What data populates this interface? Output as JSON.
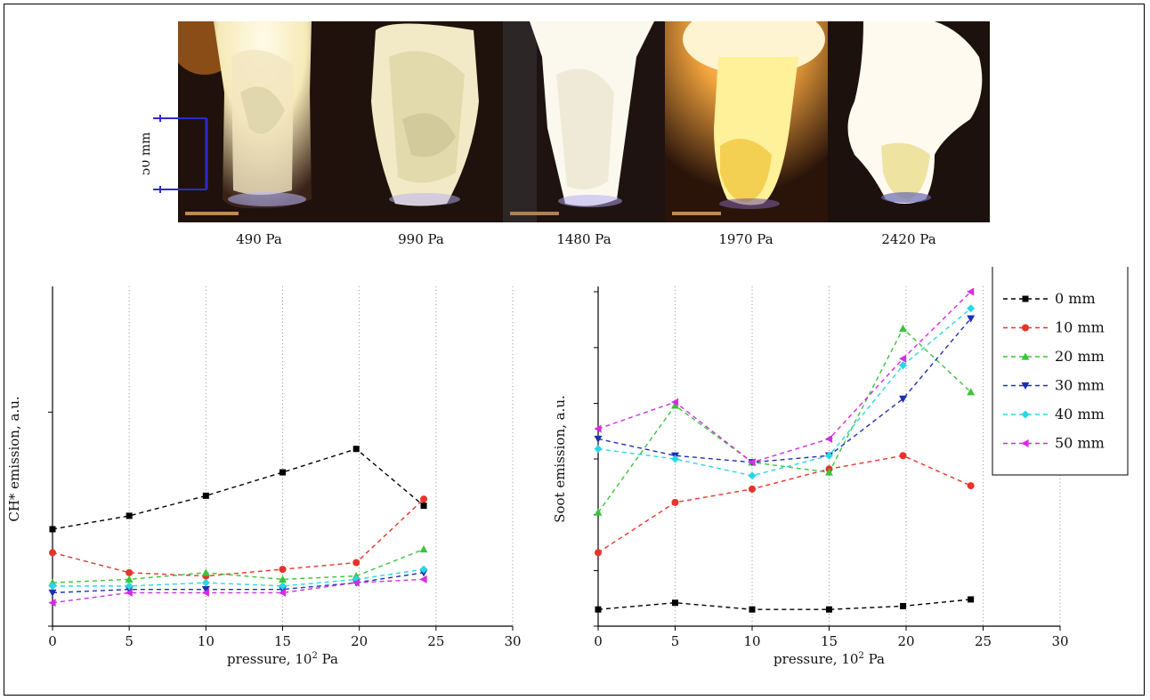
{
  "photo_strip": {
    "scale_label": "50 mm",
    "labels": [
      "490 Pa",
      "990 Pa",
      "1480 Pa",
      "1970 Pa",
      "2420 Pa"
    ]
  },
  "colors": {
    "series": [
      "#000000",
      "#e8332a",
      "#3bc43b",
      "#1f2fb0",
      "#2ad6e6",
      "#d22ee0"
    ],
    "scale_bar": "#2b2bd0"
  },
  "chart_data": [
    {
      "type": "line",
      "title": "",
      "xlabel": "pressure, 10",
      "xlabel_sup": "2",
      "xlabel_tail": " Pa",
      "ylabel": "CH* emission, a.u.",
      "xlim": [
        0,
        30
      ],
      "xticks": [
        "0",
        "5",
        "10",
        "15",
        "20",
        "25",
        "30"
      ],
      "ylim": [
        0,
        1
      ],
      "grid": "vertical",
      "series": [
        {
          "name": "0 mm",
          "marker": "square",
          "x": [
            0,
            5,
            10,
            15,
            19.8,
            24.2
          ],
          "y": [
            0.29,
            0.33,
            0.39,
            0.46,
            0.53,
            0.36
          ]
        },
        {
          "name": "10 mm",
          "marker": "circle",
          "x": [
            0,
            5,
            10,
            15,
            19.8,
            24.2
          ],
          "y": [
            0.22,
            0.16,
            0.15,
            0.17,
            0.19,
            0.38
          ]
        },
        {
          "name": "20 mm",
          "marker": "triangle-up",
          "x": [
            0,
            5,
            10,
            15,
            19.8,
            24.2
          ],
          "y": [
            0.13,
            0.14,
            0.16,
            0.14,
            0.15,
            0.23
          ]
        },
        {
          "name": "30 mm",
          "marker": "triangle-down",
          "x": [
            0,
            5,
            10,
            15,
            19.8,
            24.2
          ],
          "y": [
            0.1,
            0.11,
            0.11,
            0.11,
            0.13,
            0.16
          ]
        },
        {
          "name": "40 mm",
          "marker": "diamond",
          "x": [
            0,
            5,
            10,
            15,
            19.8,
            24.2
          ],
          "y": [
            0.12,
            0.12,
            0.13,
            0.12,
            0.14,
            0.17
          ]
        },
        {
          "name": "50 mm",
          "marker": "triangle-left",
          "x": [
            0,
            5,
            10,
            15,
            19.8,
            24.2
          ],
          "y": [
            0.07,
            0.1,
            0.1,
            0.1,
            0.13,
            0.14
          ]
        }
      ]
    },
    {
      "type": "line",
      "title": "",
      "xlabel": "pressure, 10",
      "xlabel_sup": "2",
      "xlabel_tail": " Pa",
      "ylabel": "Soot emission, a.u.",
      "xlim": [
        0,
        30
      ],
      "xticks": [
        "0",
        "5",
        "10",
        "15",
        "20",
        "25",
        "30"
      ],
      "ylim": [
        0,
        1
      ],
      "grid": "vertical",
      "legend": "top-right",
      "series": [
        {
          "name": "0 mm",
          "marker": "square",
          "x": [
            0,
            5,
            10,
            15,
            19.8,
            24.2
          ],
          "y": [
            0.05,
            0.07,
            0.05,
            0.05,
            0.06,
            0.08
          ]
        },
        {
          "name": "10 mm",
          "marker": "circle",
          "x": [
            0,
            5,
            10,
            15,
            19.8,
            24.2
          ],
          "y": [
            0.22,
            0.37,
            0.41,
            0.47,
            0.51,
            0.42
          ]
        },
        {
          "name": "20 mm",
          "marker": "triangle-up",
          "x": [
            0,
            5,
            10,
            15,
            19.8,
            24.2
          ],
          "y": [
            0.34,
            0.66,
            0.49,
            0.46,
            0.89,
            0.7
          ]
        },
        {
          "name": "30 mm",
          "marker": "triangle-down",
          "x": [
            0,
            5,
            10,
            15,
            19.8,
            24.2
          ],
          "y": [
            0.56,
            0.51,
            0.49,
            0.51,
            0.68,
            0.92
          ]
        },
        {
          "name": "40 mm",
          "marker": "diamond",
          "x": [
            0,
            5,
            10,
            15,
            19.8,
            24.2
          ],
          "y": [
            0.53,
            0.5,
            0.45,
            0.51,
            0.78,
            0.95
          ]
        },
        {
          "name": "50 mm",
          "marker": "triangle-left",
          "x": [
            0,
            5,
            10,
            15,
            19.8,
            24.2
          ],
          "y": [
            0.59,
            0.67,
            0.49,
            0.56,
            0.8,
            1.0
          ]
        }
      ]
    }
  ]
}
